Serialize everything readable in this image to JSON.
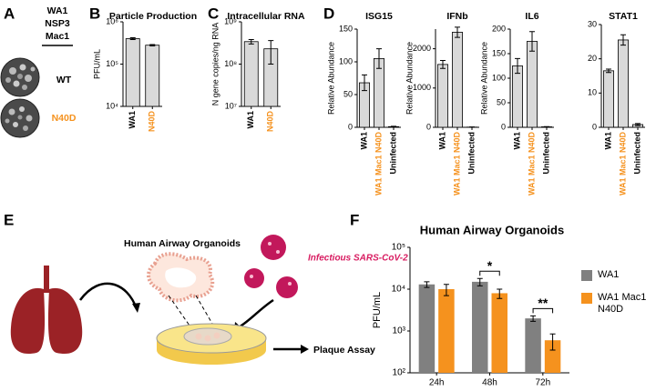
{
  "panel_labels": [
    "A",
    "B",
    "C",
    "D",
    "E",
    "F"
  ],
  "panel_a": {
    "header": [
      "WA1",
      "NSP3",
      "Mac1"
    ],
    "rows": [
      "WT",
      "N40D"
    ]
  },
  "panel_e": {
    "title": "Human Airway Organoids",
    "virus": "Infectious SARS-CoV-2",
    "assay": "Plaque Assay"
  },
  "chart_data": [
    {
      "type": "bar",
      "title": "Particle Production",
      "y_label": "PFU/mL",
      "log_scale": true,
      "categories": [
        "WA1",
        "N40D"
      ],
      "category_colors": [
        "#000000",
        "#f5921e"
      ],
      "color": "#d9d9d9",
      "values": [
        400000,
        280000
      ],
      "errors": [
        20000,
        10000
      ],
      "ylim": [
        10000,
        1000000
      ],
      "yticks": [
        {
          "value": 10000,
          "label": "10⁴"
        },
        {
          "value": 100000,
          "label": "10⁵"
        },
        {
          "value": 1000000,
          "label": "10⁶"
        }
      ]
    },
    {
      "type": "bar",
      "title": "Intracellular RNA",
      "y_label": "N gene copies/ng RNA",
      "log_scale": true,
      "categories": [
        "WA1",
        "N40D"
      ],
      "category_colors": [
        "#000000",
        "#f5921e"
      ],
      "color": "#d9d9d9",
      "values": [
        340000000,
        230000000
      ],
      "errors": [
        40000000,
        130000000
      ],
      "ylim": [
        10000000,
        1000000000
      ],
      "yticks": [
        {
          "value": 10000000,
          "label": "10⁷"
        },
        {
          "value": 100000000,
          "label": "10⁸"
        },
        {
          "value": 1000000000,
          "label": "10⁹"
        }
      ]
    },
    {
      "type": "bar",
      "title": "ISG15",
      "y_label": "Relative Abundance",
      "categories": [
        "WA1",
        "WA1 Mac1 N40D",
        "Uninfected"
      ],
      "category_colors": [
        "#000000",
        "#f5921e",
        "#000000"
      ],
      "color": "#d9d9d9",
      "values": [
        68,
        105,
        1
      ],
      "errors": [
        12,
        15,
        0.5
      ],
      "ylim": [
        0,
        150
      ],
      "yticks": [
        0,
        50,
        100,
        150
      ]
    },
    {
      "type": "bar",
      "title": "IFNb",
      "y_label": "Relative Abundance",
      "categories": [
        "WA1",
        "WA1 Mac1 N40D",
        "Uninfected"
      ],
      "category_colors": [
        "#000000",
        "#f5921e",
        "#000000"
      ],
      "color": "#d9d9d9",
      "values": [
        1600,
        2420,
        5
      ],
      "errors": [
        100,
        130,
        3
      ],
      "ylim": [
        0,
        2500
      ],
      "yticks": [
        0,
        1000,
        2000
      ]
    },
    {
      "type": "bar",
      "title": "IL6",
      "y_label": "Relative Abundance",
      "categories": [
        "WA1",
        "WA1 Mac1 N40D",
        "Uninfected"
      ],
      "category_colors": [
        "#000000",
        "#f5921e",
        "#000000"
      ],
      "color": "#d9d9d9",
      "values": [
        125,
        175,
        1
      ],
      "errors": [
        15,
        20,
        0.5
      ],
      "ylim": [
        0,
        200
      ],
      "yticks": [
        0,
        50,
        100,
        150,
        200
      ]
    },
    {
      "type": "bar",
      "title": "STAT1",
      "categories": [
        "WA1",
        "WA1 Mac1 N40D",
        "Uninfected"
      ],
      "category_colors": [
        "#000000",
        "#f5921e",
        "#000000"
      ],
      "color": "#d9d9d9",
      "values": [
        16.5,
        25.5,
        0.8
      ],
      "errors": [
        0.5,
        1.5,
        0.3
      ],
      "ylim": [
        0,
        30
      ],
      "yticks": [
        0,
        10,
        20,
        30
      ]
    },
    {
      "type": "bar",
      "title": "Human Airway Organoids",
      "y_label": "PFU/mL",
      "log_scale": true,
      "categories": [
        "24h",
        "48h",
        "72h"
      ],
      "series": [
        {
          "name": "WA1",
          "color": "#808080",
          "values": [
            13000,
            15000,
            2000
          ],
          "errors": [
            2000,
            3000,
            300
          ]
        },
        {
          "name": "WA1 Mac1 N40D",
          "color": "#f5921e",
          "values": [
            10000,
            8000,
            600
          ],
          "errors": [
            3000,
            2000,
            250
          ]
        }
      ],
      "ylim": [
        100,
        100000
      ],
      "yticks": [
        {
          "value": 100,
          "label": "10²"
        },
        {
          "value": 1000,
          "label": "10³"
        },
        {
          "value": 10000,
          "label": "10⁴"
        },
        {
          "value": 100000,
          "label": "10⁵"
        }
      ],
      "annotations": [
        {
          "text": "*",
          "category": "48h"
        },
        {
          "text": "**",
          "category": "72h"
        }
      ]
    }
  ]
}
